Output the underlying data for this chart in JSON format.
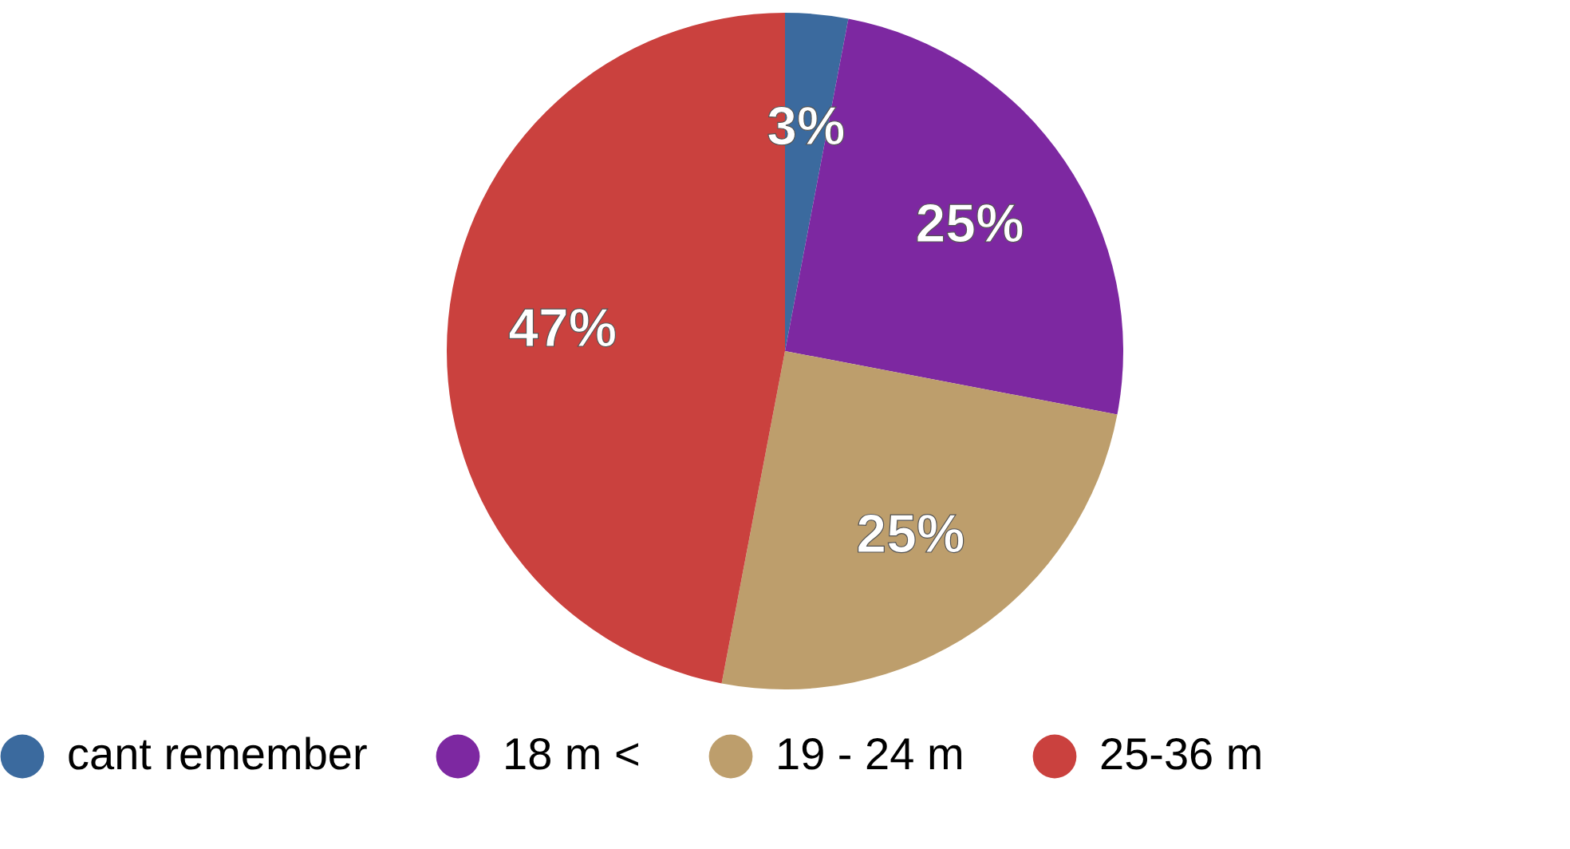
{
  "chart_data": {
    "type": "pie",
    "categories": [
      "cant remember",
      "18 m <",
      "19 - 24 m",
      "25-36 m"
    ],
    "values": [
      3,
      25,
      25,
      47
    ],
    "colors": [
      "#3b6a9e",
      "#7d28a1",
      "#bd9e6c",
      "#ca413e"
    ],
    "value_labels": [
      "3%",
      "25%",
      "25%",
      "47%"
    ],
    "legend": "bottom"
  }
}
